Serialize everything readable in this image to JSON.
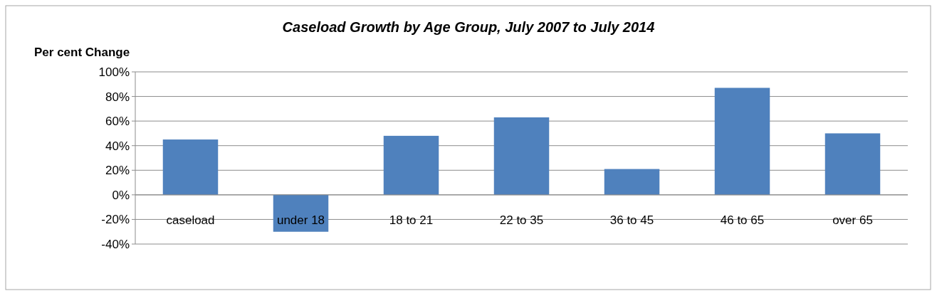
{
  "chart_data": {
    "type": "bar",
    "title": "Caseload Growth by Age Group, July 2007 to July 2014",
    "ylabel": "Per cent Change",
    "categories": [
      "caseload",
      "under 18",
      "18 to 21",
      "22 to 35",
      "36 to 45",
      "46 to 65",
      "over 65"
    ],
    "values": [
      45,
      -30,
      48,
      63,
      21,
      87,
      50
    ],
    "color": "#4f81bd",
    "ylim": [
      -40,
      100
    ],
    "yticks": [
      {
        "value": -40,
        "label": "-40%"
      },
      {
        "value": -20,
        "label": "-20%"
      },
      {
        "value": 0,
        "label": "0%"
      },
      {
        "value": 20,
        "label": "20%"
      },
      {
        "value": 40,
        "label": "40%"
      },
      {
        "value": 60,
        "label": "60%"
      },
      {
        "value": 80,
        "label": "80%"
      },
      {
        "value": 100,
        "label": "100%"
      }
    ],
    "grid": "y"
  }
}
